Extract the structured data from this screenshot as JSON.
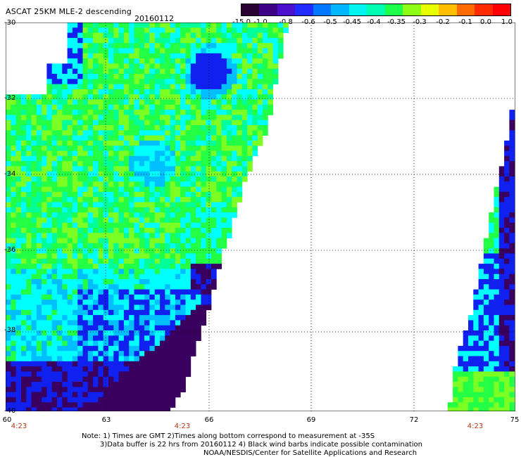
{
  "header": {
    "title": "ASCAT 25KM MLE-2 descending",
    "date": "20160112"
  },
  "colorbar": {
    "labels": [
      "-15.0",
      "-1.0",
      "-0.8",
      "-0.6",
      "-0.5",
      "-0.45",
      "-0.4",
      "-0.35",
      "-0.3",
      "-0.2",
      "-0.1",
      "0.0",
      "1.0"
    ],
    "colors": [
      "#2a0033",
      "#3b0086",
      "#4a10cc",
      "#1f2bff",
      "#0077ff",
      "#00b7ff",
      "#00f5f0",
      "#00ffb0",
      "#1eff4a",
      "#8cff14",
      "#e8ff00",
      "#ffbf00",
      "#ff6a00",
      "#ff2a00",
      "#ff0000"
    ]
  },
  "map": {
    "lat_labels": [
      "-30",
      "-32",
      "-34",
      "-36",
      "-38",
      "-40"
    ],
    "lon_labels": [
      "60",
      "63",
      "66",
      "69",
      "72",
      "75"
    ],
    "time_labels": [
      "4:23",
      "4:23",
      "4:23"
    ],
    "colors": {
      "deep": "#3a0060",
      "blue": "#1020ee",
      "cyan": "#00ffff",
      "lightblue": "#00bfff",
      "green": "#22ff44",
      "lime": "#7cff22",
      "seagreen": "#00ff99"
    }
  },
  "notes": {
    "line1": "Note: 1) Times are GMT 2)Times along bottom correspond to measurement at -35S",
    "line2": "3)Data buffer is 22 hrs from 20160112 4) Black wind barbs indicate possible contamination",
    "line3": "NOAA/NESDIS/Center for Satellite Applications and Research"
  }
}
